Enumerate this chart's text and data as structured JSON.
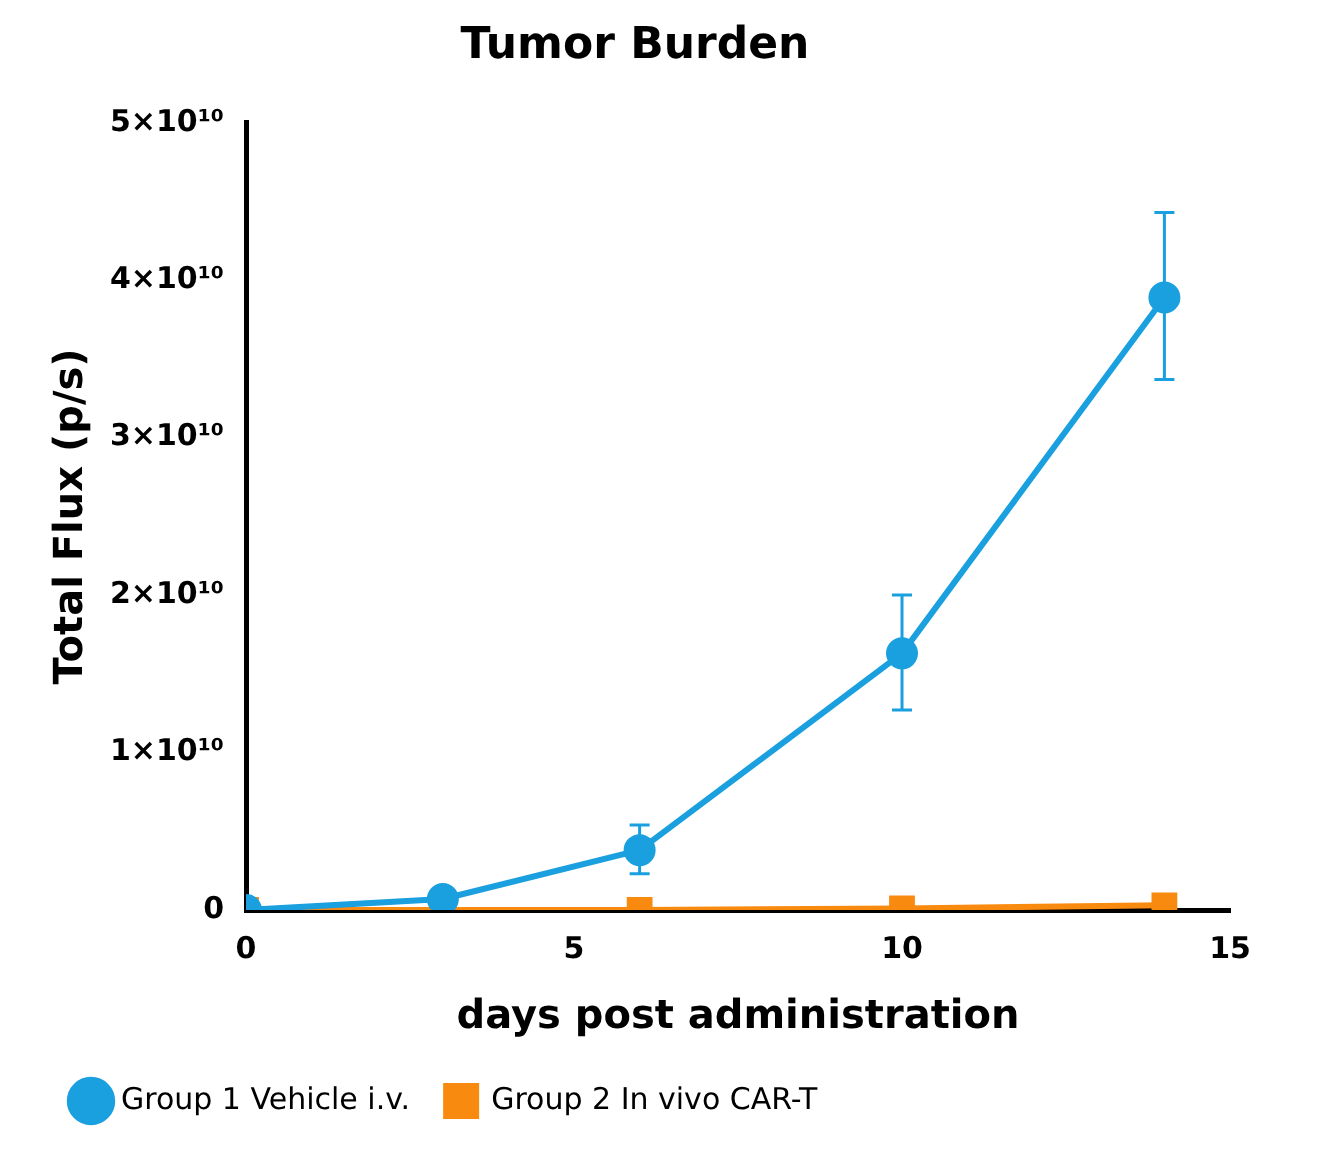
{
  "chart_data": {
    "type": "line",
    "title": "Tumor Burden",
    "xlabel": "days post administration",
    "ylabel": "Total Flux (p/s)",
    "x": [
      0,
      3,
      6,
      10,
      14
    ],
    "series": [
      {
        "name": "Group 1 Vehicle i.v.",
        "color": "#1a9fdf",
        "marker": "circle",
        "values": [
          0,
          700000000.0,
          3800000000.0,
          16300000000.0,
          38900000000.0
        ],
        "errors": [
          null,
          null,
          [
            2300000000.0,
            5400000000.0
          ],
          [
            12700000000.0,
            20000000000.0
          ],
          [
            33700000000.0,
            44300000000.0
          ]
        ]
      },
      {
        "name": "Group 2 In vivo CAR-T",
        "color": "#f98a10",
        "marker": "square",
        "values": [
          0,
          0,
          0,
          100000000.0,
          300000000.0
        ]
      }
    ],
    "xlim": [
      0,
      15
    ],
    "xticks": [
      0,
      5,
      10,
      15
    ],
    "ylim": [
      0,
      50000000000.0
    ],
    "yticks": [
      0,
      {
        "value": 10000000000.0,
        "label": "1×10¹⁰"
      },
      {
        "value": 20000000000.0,
        "label": "2×10¹⁰"
      },
      {
        "value": 30000000000.0,
        "label": "3×10¹⁰"
      },
      {
        "value": 40000000000.0,
        "label": "4×10¹⁰"
      },
      {
        "value": 50000000000.0,
        "label": "5×10¹⁰"
      }
    ],
    "grid": false,
    "legend": "bottom",
    "line_style": "solid"
  }
}
